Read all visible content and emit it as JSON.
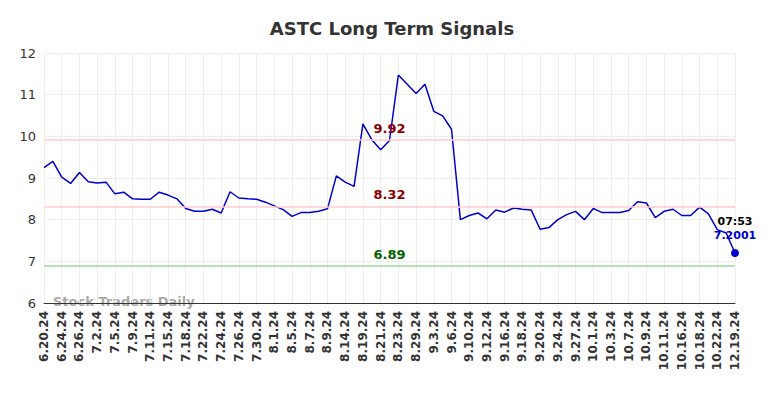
{
  "chart_data": {
    "type": "line",
    "title": "ASTC Long Term Signals",
    "categories": [
      "6.20.24",
      null,
      "6.24.24",
      null,
      "6.26.24",
      null,
      "7.2.24",
      null,
      "7.5.24",
      null,
      "7.9.24",
      null,
      "7.11.24",
      null,
      "7.15.24",
      null,
      "7.18.24",
      null,
      "7.22.24",
      null,
      "7.24.24",
      null,
      "7.26.24",
      null,
      "7.30.24",
      null,
      "8.1.24",
      null,
      "8.5.24",
      null,
      "8.7.24",
      null,
      "8.9.24",
      null,
      "8.14.24",
      null,
      "8.19.24",
      null,
      "8.21.24",
      null,
      "8.23.24",
      null,
      "8.29.24",
      null,
      "9.3.24",
      null,
      "9.6.24",
      null,
      "9.10.24",
      null,
      "9.12.24",
      null,
      "9.16.24",
      null,
      "9.18.24",
      null,
      "9.20.24",
      null,
      "9.24.24",
      null,
      "9.27.24",
      null,
      "10.1.24",
      null,
      "10.3.24",
      null,
      "10.7.24",
      null,
      "10.9.24",
      null,
      "10.11.24",
      null,
      "10.16.24",
      null,
      "10.18.24",
      null,
      "10.22.24",
      null,
      "12.19.24"
    ],
    "values": [
      9.25,
      9.4,
      9.02,
      8.87,
      9.13,
      8.91,
      8.88,
      8.9,
      8.62,
      8.66,
      8.5,
      8.49,
      8.49,
      8.66,
      8.59,
      8.5,
      8.27,
      8.2,
      8.2,
      8.25,
      8.16,
      8.67,
      8.52,
      8.5,
      8.49,
      8.42,
      8.33,
      8.24,
      8.08,
      8.17,
      8.17,
      8.2,
      8.26,
      9.05,
      8.9,
      8.8,
      10.3,
      9.92,
      9.68,
      9.9,
      11.47,
      11.25,
      11.03,
      11.25,
      10.6,
      10.49,
      10.17,
      8.0,
      8.1,
      8.16,
      8.02,
      8.23,
      8.18,
      8.28,
      8.25,
      8.23,
      7.77,
      7.81,
      8.0,
      8.12,
      8.2,
      8.0,
      8.27,
      8.17,
      8.17,
      8.17,
      8.22,
      8.43,
      8.4,
      8.05,
      8.2,
      8.25,
      8.1,
      8.1,
      8.3,
      8.14,
      7.76,
      7.68,
      7.2001
    ],
    "color": "#0000cc",
    "ylim": [
      6,
      12
    ],
    "yticks": [
      6,
      7,
      8,
      9,
      10,
      11,
      12
    ],
    "grid": true,
    "reference_lines": [
      {
        "value": 9.92,
        "color": "#ffcccc",
        "label_color": "#8b0000"
      },
      {
        "value": 8.32,
        "color": "#ffcccc",
        "label_color": "#8b0000"
      },
      {
        "value": 6.89,
        "color": "#99dd99",
        "label_color": "#006400"
      }
    ],
    "last_point": {
      "time": "07:53",
      "value": 7.2001
    },
    "watermark": "Stock Traders Daily"
  }
}
